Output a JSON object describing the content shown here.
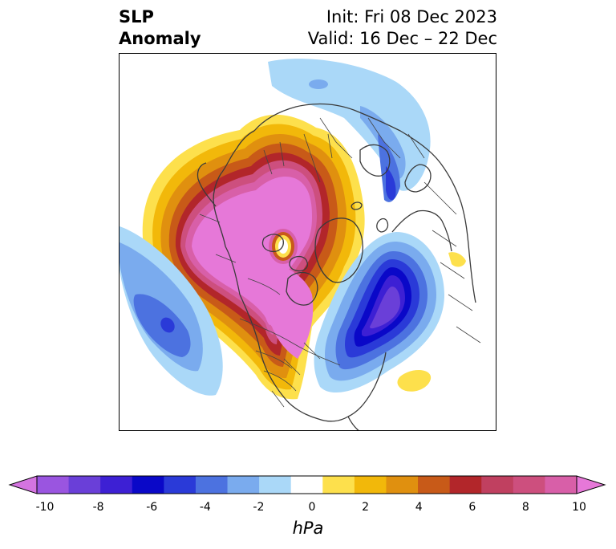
{
  "title": {
    "left_line1": "SLP",
    "left_line2": "Anomaly",
    "right_line1": "Init: Fri 08 Dec 2023",
    "right_line2": "Valid: 16 Dec – 22 Dec"
  },
  "colorbar": {
    "label": "hPa",
    "ticks": [
      "-10",
      "-8",
      "-6",
      "-4",
      "-2",
      "0",
      "2",
      "4",
      "6",
      "8",
      "10"
    ],
    "colors": [
      "#d474e0",
      "#9a55e0",
      "#6a3fd8",
      "#3d20d4",
      "#0a08c8",
      "#2a3ad8",
      "#4c72e0",
      "#7aabee",
      "#aad8f8",
      "#ffffff",
      "#fde04c",
      "#f2b80a",
      "#e0900f",
      "#c85a18",
      "#b2262a",
      "#c04060",
      "#cd4f7e",
      "#d85fa8",
      "#e678d8"
    ],
    "extend": "both"
  },
  "map": {
    "projection": "north-polar-stereographic",
    "field": "SLP anomaly",
    "features": [
      {
        "name": "high-anomaly-north-pacific-alaska",
        "sign": "positive",
        "peak_hpa": 10
      },
      {
        "name": "high-anomaly-arctic-siberia",
        "sign": "positive",
        "peak_hpa": 10
      },
      {
        "name": "high-anomaly-central-canada",
        "sign": "positive",
        "peak_hpa": 10
      },
      {
        "name": "low-anomaly-north-atlantic",
        "sign": "negative",
        "peak_hpa": -8
      },
      {
        "name": "low-anomaly-scandinavia",
        "sign": "negative",
        "peak_hpa": -5
      },
      {
        "name": "low-anomaly-east-pacific",
        "sign": "negative",
        "peak_hpa": -5
      },
      {
        "name": "high-anomaly-subtropical-atlantic",
        "sign": "positive",
        "peak_hpa": 2
      }
    ]
  }
}
